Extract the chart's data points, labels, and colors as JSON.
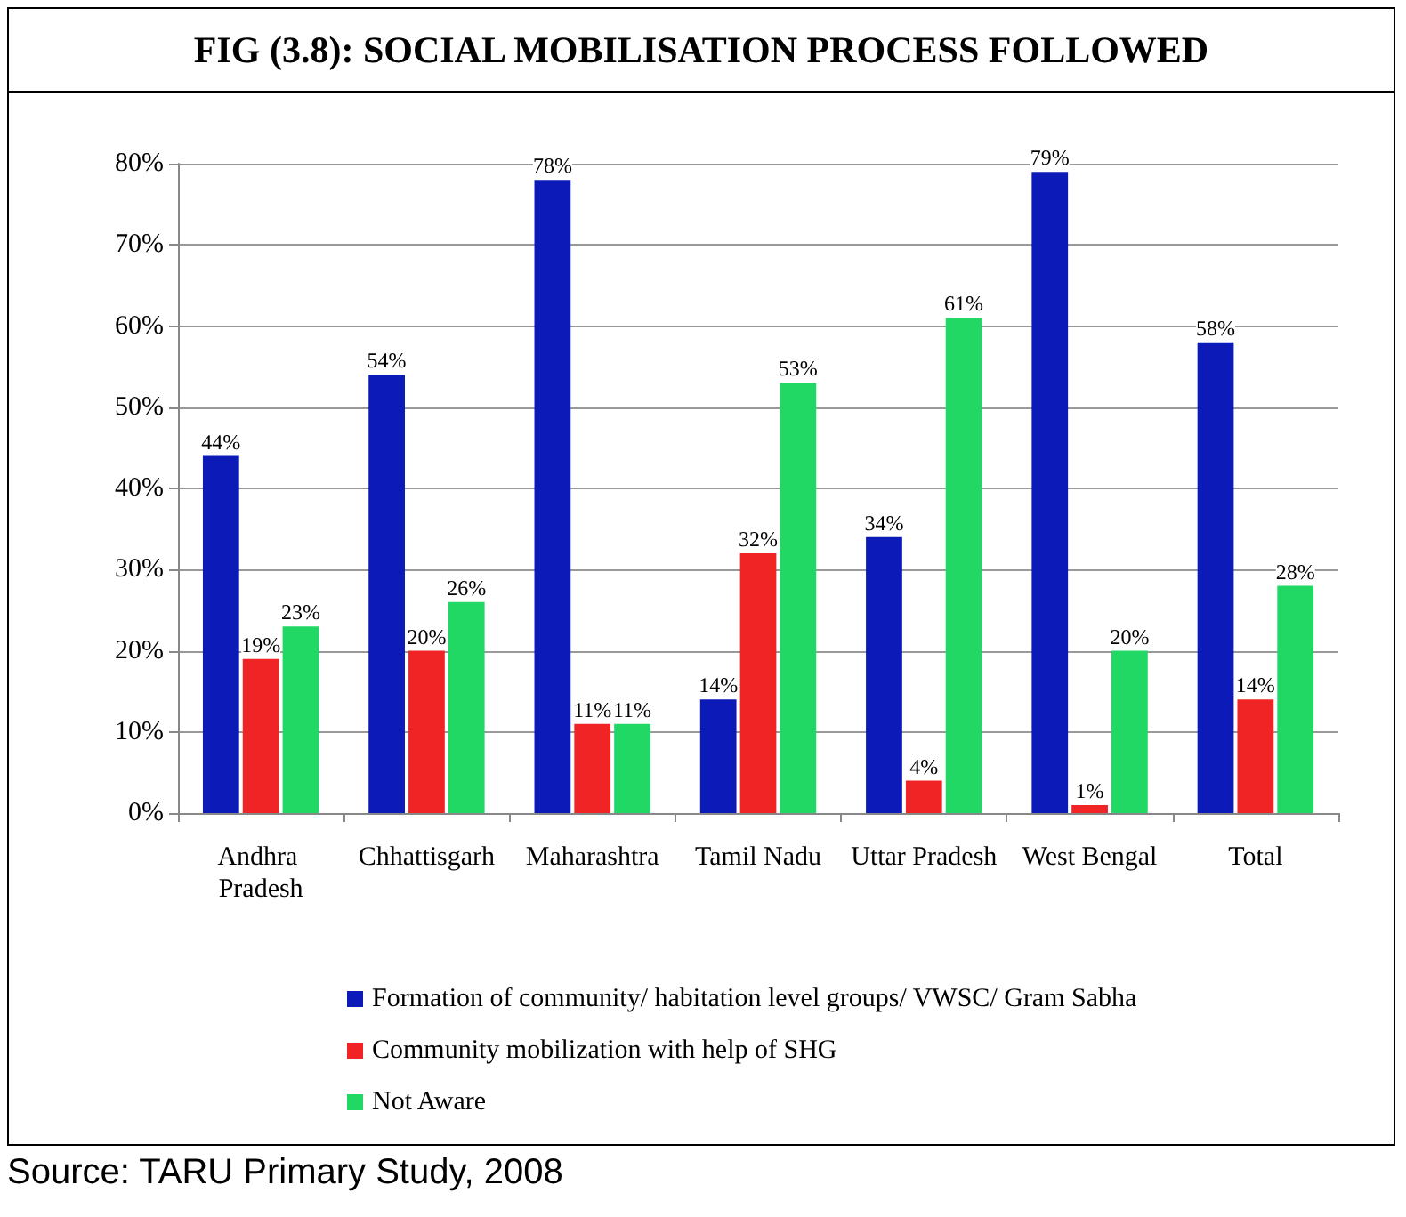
{
  "chart_data": {
    "type": "bar",
    "title": "FIG (3.8):  SOCIAL MOBILISATION PROCESS FOLLOWED",
    "categories": [
      "Andhra Pradesh",
      "Chhattisgarh",
      "Maharashtra",
      "Tamil Nadu",
      "Uttar Pradesh",
      "West Bengal",
      "Total"
    ],
    "series": [
      {
        "name": "Formation of community/ habitation level groups/ VWSC/ Gram Sabha",
        "color": "#0c1ab8",
        "values": [
          44,
          54,
          78,
          14,
          34,
          79,
          58
        ],
        "value_labels": [
          "44%",
          "54%",
          "78%",
          "14%",
          "34%",
          "79%",
          "58%"
        ]
      },
      {
        "name": "Community mobilization with help of SHG",
        "color": "#f02424",
        "values": [
          19,
          20,
          11,
          32,
          4,
          1,
          14
        ],
        "value_labels": [
          "19%",
          "20%",
          "11%",
          "32%",
          "4%",
          "1%",
          "14%"
        ]
      },
      {
        "name": "Not Aware",
        "color": "#22d865",
        "values": [
          23,
          26,
          11,
          53,
          61,
          20,
          28
        ],
        "value_labels": [
          "23%",
          "26%",
          "11%",
          "53%",
          "61%",
          "20%",
          "28%"
        ]
      }
    ],
    "ylim": [
      0,
      80
    ],
    "yticks": [
      {
        "value": 0,
        "label": "0%"
      },
      {
        "value": 10,
        "label": "10%"
      },
      {
        "value": 20,
        "label": "20%"
      },
      {
        "value": 30,
        "label": "30%"
      },
      {
        "value": 40,
        "label": "40%"
      },
      {
        "value": 50,
        "label": "50%"
      },
      {
        "value": 60,
        "label": "60%"
      },
      {
        "value": 70,
        "label": "70%"
      },
      {
        "value": 80,
        "label": "80%"
      }
    ],
    "grid": "y",
    "legend": "bottom",
    "annotations": [
      "Source: TARU Primary Study, 2008"
    ]
  }
}
